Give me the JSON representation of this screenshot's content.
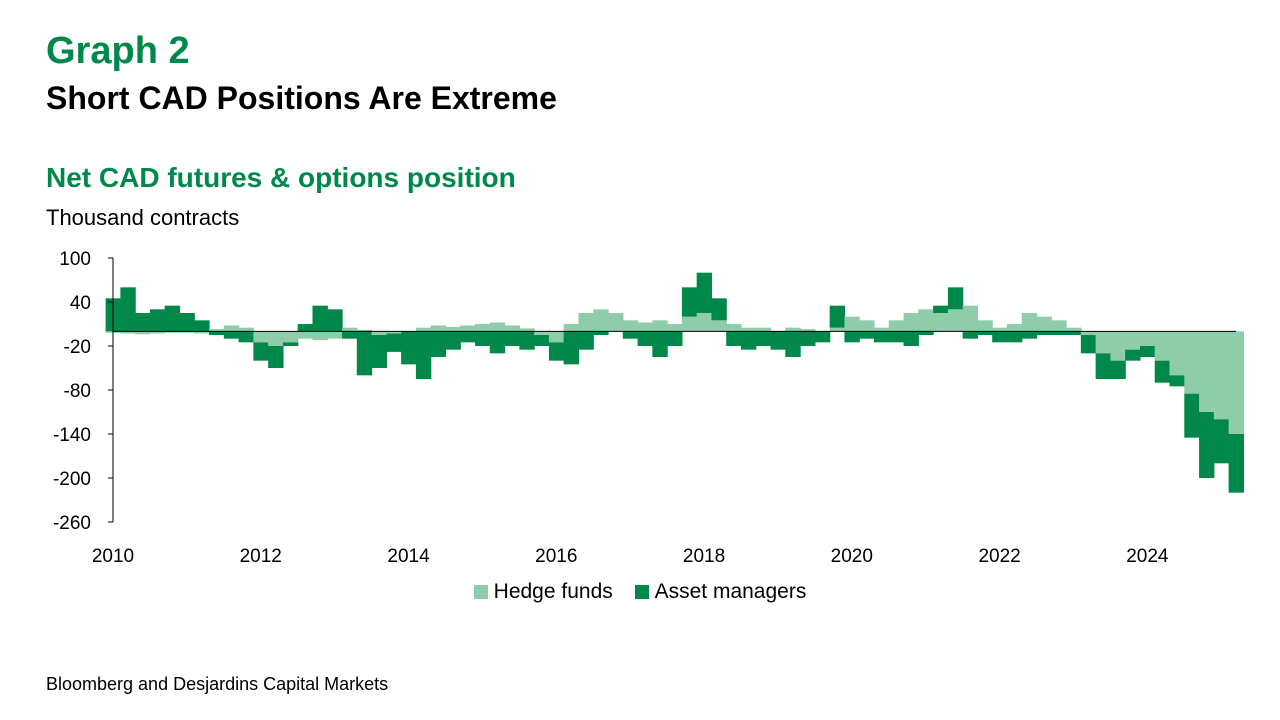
{
  "header": {
    "graph_label": "Graph 2",
    "graph_title": "Short CAD Positions Are Extreme"
  },
  "chart_title": "Net CAD futures & options position",
  "unit_label": "Thousand contracts",
  "source": "Bloomberg and Desjardins Capital Markets",
  "colors": {
    "hedge_funds": "#8fccaa",
    "asset_managers": "#00874a",
    "accent": "#00874a"
  },
  "chart_data": {
    "type": "area",
    "title": "Net CAD futures & options position",
    "ylabel": "Thousand contracts",
    "xlim": [
      2010,
      2025.2
    ],
    "ylim": [
      -260,
      100
    ],
    "y_ticks": [
      100,
      40,
      -20,
      -80,
      -140,
      -200,
      -260
    ],
    "x_ticks": [
      "2010",
      "2012",
      "2014",
      "2016",
      "2018",
      "2020",
      "2022",
      "2024"
    ],
    "legend_position": "bottom",
    "x": [
      2010.0,
      2010.2,
      2010.4,
      2010.6,
      2010.8,
      2011.0,
      2011.2,
      2011.4,
      2011.6,
      2011.8,
      2012.0,
      2012.2,
      2012.4,
      2012.6,
      2012.8,
      2013.0,
      2013.2,
      2013.4,
      2013.6,
      2013.8,
      2014.0,
      2014.2,
      2014.4,
      2014.6,
      2014.8,
      2015.0,
      2015.2,
      2015.4,
      2015.6,
      2015.8,
      2016.0,
      2016.2,
      2016.4,
      2016.6,
      2016.8,
      2017.0,
      2017.2,
      2017.4,
      2017.6,
      2017.8,
      2018.0,
      2018.2,
      2018.4,
      2018.6,
      2018.8,
      2019.0,
      2019.2,
      2019.4,
      2019.6,
      2019.8,
      2020.0,
      2020.2,
      2020.4,
      2020.6,
      2020.8,
      2021.0,
      2021.2,
      2021.4,
      2021.6,
      2021.8,
      2022.0,
      2022.2,
      2022.4,
      2022.6,
      2022.8,
      2023.0,
      2023.2,
      2023.4,
      2023.6,
      2023.8,
      2024.0,
      2024.2,
      2024.4,
      2024.6,
      2024.8,
      2025.0,
      2025.2
    ],
    "series": [
      {
        "name": "Hedge funds",
        "values": [
          -2,
          -3,
          -4,
          -3,
          -2,
          -2,
          -3,
          3,
          8,
          5,
          -15,
          -20,
          -15,
          -10,
          -12,
          -10,
          5,
          2,
          -5,
          -3,
          0,
          5,
          8,
          6,
          8,
          10,
          12,
          8,
          4,
          -5,
          -15,
          10,
          25,
          30,
          25,
          15,
          12,
          15,
          10,
          20,
          25,
          15,
          10,
          5,
          5,
          0,
          5,
          3,
          0,
          5,
          20,
          15,
          5,
          15,
          25,
          30,
          25,
          30,
          35,
          15,
          5,
          10,
          25,
          20,
          15,
          5,
          -5,
          -30,
          -40,
          -25,
          -20,
          -40,
          -60,
          -85,
          -110,
          -120,
          -140
        ]
      },
      {
        "name": "Asset managers",
        "values": [
          45,
          60,
          25,
          30,
          35,
          25,
          15,
          -5,
          -10,
          -15,
          -25,
          -30,
          -5,
          10,
          35,
          30,
          -10,
          -60,
          -45,
          -25,
          -45,
          -65,
          -35,
          -25,
          -15,
          -20,
          -30,
          -20,
          -25,
          -15,
          -25,
          -45,
          -25,
          -5,
          0,
          -10,
          -20,
          -35,
          -20,
          40,
          55,
          30,
          -20,
          -25,
          -20,
          -25,
          -35,
          -20,
          -15,
          30,
          -15,
          -10,
          -15,
          -15,
          -20,
          -5,
          10,
          30,
          -10,
          -5,
          -15,
          -15,
          -10,
          -5,
          -5,
          -5,
          -25,
          -35,
          -25,
          -15,
          -15,
          -30,
          -15,
          -60,
          -90,
          -60,
          -80
        ]
      }
    ]
  }
}
